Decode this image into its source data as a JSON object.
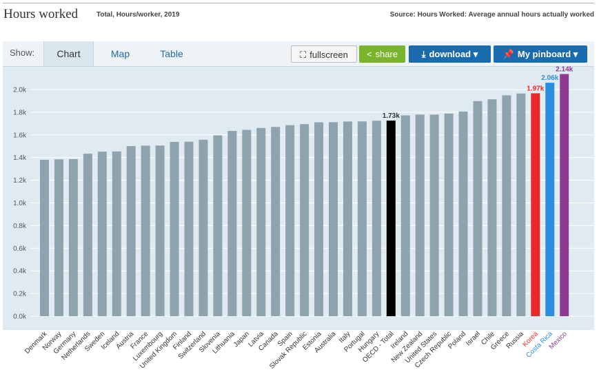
{
  "header": {
    "title": "Hours worked",
    "subtitle": "Total, Hours/worker, 2019",
    "source": "Source: Hours Worked: Average annual hours actually worked"
  },
  "toolbar": {
    "show_label": "Show:",
    "tabs": [
      {
        "label": "Chart",
        "active": true
      },
      {
        "label": "Map",
        "active": false
      },
      {
        "label": "Table",
        "active": false
      }
    ],
    "fullscreen_label": "fullscreen",
    "share_label": "share",
    "download_label": "download",
    "pinboard_label": "My pinboard",
    "colors": {
      "share": "#7ab42d",
      "download": "#1a6aae",
      "pinboard": "#1a6aae"
    }
  },
  "chart_data": {
    "type": "bar",
    "title": "Hours worked",
    "subtitle": "Total, Hours/worker, 2019",
    "ylim": [
      0,
      2250
    ],
    "yticks": [
      0,
      200,
      400,
      600,
      800,
      1000,
      1200,
      1400,
      1600,
      1800,
      2000
    ],
    "ytick_labels": [
      "0.0k",
      "0.2k",
      "0.4k",
      "0.6k",
      "0.8k",
      "1.0k",
      "1.2k",
      "1.4k",
      "1.6k",
      "1.8k",
      "2.0k"
    ],
    "grid": true,
    "default_color": "#8fa3ae",
    "categories": [
      "Denmark",
      "Norway",
      "Germany",
      "Netherlands",
      "Sweden",
      "Iceland",
      "Austria",
      "France",
      "Luxembourg",
      "United Kingdom",
      "Finland",
      "Switzerland",
      "Slovenia",
      "Lithuania",
      "Japan",
      "Latvia",
      "Canada",
      "Spain",
      "Slovak Republic",
      "Estonia",
      "Australia",
      "Italy",
      "Portugal",
      "Hungary",
      "OECD - Total",
      "Ireland",
      "New Zealand",
      "United States",
      "Czech Republic",
      "Poland",
      "Israel",
      "Chile",
      "Greece",
      "Russia",
      "Korea",
      "Costa Rica",
      "Mexico"
    ],
    "values": [
      1380,
      1384,
      1386,
      1434,
      1452,
      1454,
      1501,
      1505,
      1506,
      1538,
      1540,
      1557,
      1596,
      1635,
      1644,
      1661,
      1670,
      1686,
      1695,
      1711,
      1712,
      1718,
      1719,
      1725,
      1726,
      1772,
      1779,
      1779,
      1788,
      1806,
      1898,
      1914,
      1949,
      1965,
      1967,
      2060,
      2137
    ],
    "highlights": [
      {
        "category": "OECD - Total",
        "color": "#000000",
        "label": "1.73k"
      },
      {
        "category": "Korea",
        "color": "#e8282b",
        "label": "1.97k"
      },
      {
        "category": "Costa Rica",
        "color": "#2b8fdd",
        "label": "2.06k"
      },
      {
        "category": "Mexico",
        "color": "#8e3a91",
        "label": "2.14k"
      }
    ]
  }
}
